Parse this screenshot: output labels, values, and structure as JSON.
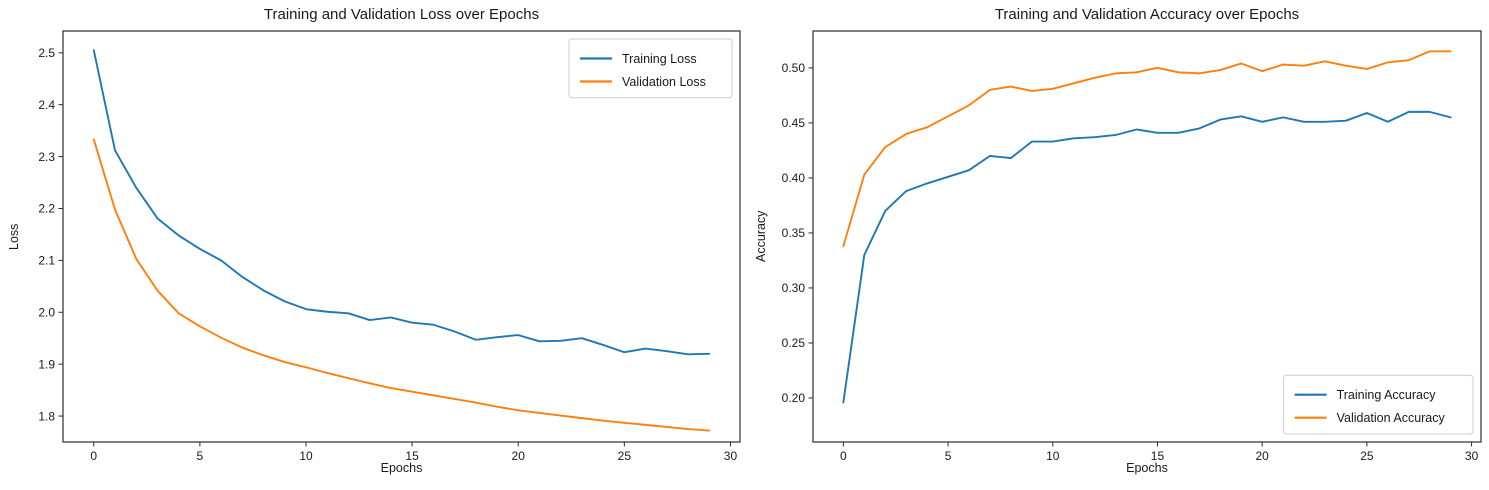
{
  "figure": {
    "background": "#ffffff",
    "axis_color": "#1a1a1a",
    "spine_color": "#2b2b2b"
  },
  "chart_data": [
    {
      "type": "line",
      "title": "Training and Validation Loss over Epochs",
      "xlabel": "Epochs",
      "ylabel": "Loss",
      "x": [
        0,
        1,
        2,
        3,
        4,
        5,
        6,
        7,
        8,
        9,
        10,
        11,
        12,
        13,
        14,
        15,
        16,
        17,
        18,
        19,
        20,
        21,
        22,
        23,
        24,
        25,
        26,
        27,
        28,
        29
      ],
      "xlim": [
        -1.45,
        30.45
      ],
      "ylim": [
        1.75,
        2.542
      ],
      "xticks": [
        0,
        5,
        10,
        15,
        20,
        25,
        30
      ],
      "xtick_labels": [
        "0",
        "5",
        "10",
        "15",
        "20",
        "25",
        "30"
      ],
      "yticks": [
        1.8,
        1.9,
        2.0,
        2.1,
        2.2,
        2.3,
        2.4,
        2.5
      ],
      "ytick_labels": [
        "1.8",
        "1.9",
        "2.0",
        "2.1",
        "2.2",
        "2.3",
        "2.4",
        "2.5"
      ],
      "grid": false,
      "legend_position": "upper-right",
      "series": [
        {
          "name": "Training Loss",
          "color": "#1f77b4",
          "values": [
            2.505,
            2.312,
            2.24,
            2.181,
            2.148,
            2.122,
            2.1,
            2.068,
            2.042,
            2.021,
            2.006,
            2.001,
            1.998,
            1.985,
            1.99,
            1.98,
            1.976,
            1.963,
            1.947,
            1.952,
            1.956,
            1.944,
            1.945,
            1.95,
            1.937,
            1.923,
            1.93,
            1.925,
            1.919,
            1.92
          ]
        },
        {
          "name": "Validation Loss",
          "color": "#ff7f0e",
          "values": [
            2.333,
            2.198,
            2.103,
            2.042,
            1.998,
            1.973,
            1.951,
            1.932,
            1.917,
            1.904,
            1.894,
            1.883,
            1.873,
            1.863,
            1.854,
            1.847,
            1.84,
            1.833,
            1.826,
            1.818,
            1.811,
            1.806,
            1.801,
            1.796,
            1.791,
            1.787,
            1.783,
            1.779,
            1.775,
            1.772
          ]
        }
      ]
    },
    {
      "type": "line",
      "title": "Training and Validation Accuracy over Epochs",
      "xlabel": "Epochs",
      "ylabel": "Accuracy",
      "x": [
        0,
        1,
        2,
        3,
        4,
        5,
        6,
        7,
        8,
        9,
        10,
        11,
        12,
        13,
        14,
        15,
        16,
        17,
        18,
        19,
        20,
        21,
        22,
        23,
        24,
        25,
        26,
        27,
        28,
        29
      ],
      "xlim": [
        -1.45,
        30.45
      ],
      "ylim": [
        0.16,
        0.5335
      ],
      "xticks": [
        0,
        5,
        10,
        15,
        20,
        25,
        30
      ],
      "xtick_labels": [
        "0",
        "5",
        "10",
        "15",
        "20",
        "25",
        "30"
      ],
      "yticks": [
        0.2,
        0.25,
        0.3,
        0.35,
        0.4,
        0.45,
        0.5
      ],
      "ytick_labels": [
        "0.20",
        "0.25",
        "0.30",
        "0.35",
        "0.40",
        "0.45",
        "0.50"
      ],
      "grid": false,
      "legend_position": "lower-right",
      "series": [
        {
          "name": "Training Accuracy",
          "color": "#1f77b4",
          "values": [
            0.196,
            0.33,
            0.37,
            0.388,
            0.395,
            0.401,
            0.407,
            0.42,
            0.418,
            0.433,
            0.433,
            0.436,
            0.437,
            0.439,
            0.444,
            0.441,
            0.441,
            0.445,
            0.453,
            0.456,
            0.451,
            0.455,
            0.451,
            0.451,
            0.452,
            0.459,
            0.451,
            0.46,
            0.46,
            0.455
          ]
        },
        {
          "name": "Validation Accuracy",
          "color": "#ff7f0e",
          "values": [
            0.338,
            0.403,
            0.428,
            0.44,
            0.446,
            0.456,
            0.466,
            0.48,
            0.483,
            0.479,
            0.481,
            0.486,
            0.491,
            0.495,
            0.496,
            0.5,
            0.496,
            0.495,
            0.498,
            0.504,
            0.497,
            0.503,
            0.502,
            0.506,
            0.502,
            0.499,
            0.505,
            0.507,
            0.515,
            0.515
          ]
        }
      ]
    }
  ]
}
